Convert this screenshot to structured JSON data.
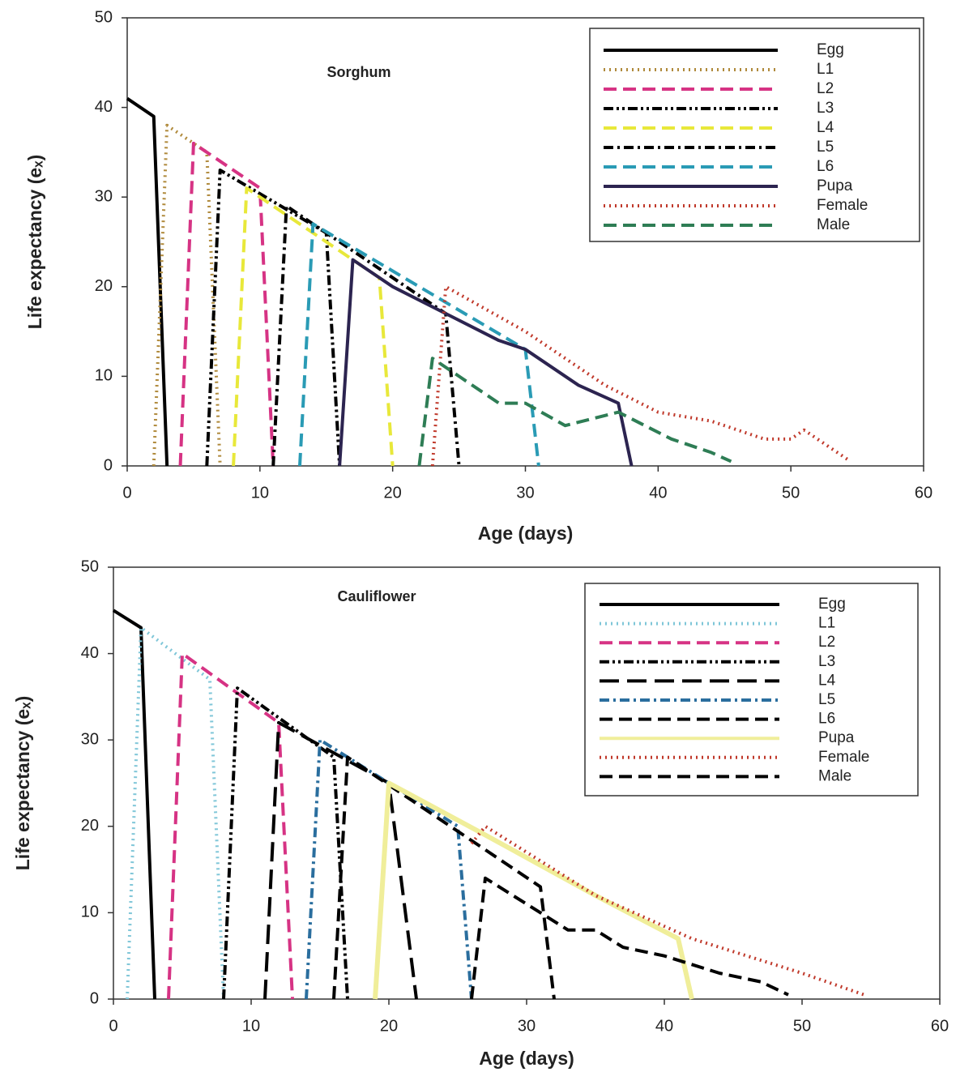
{
  "chart_data": [
    {
      "type": "line",
      "title": "Sorghum",
      "xlabel": "Age (days)",
      "ylabel": "Life expectancy (eₓ)",
      "xlim": [
        0,
        60
      ],
      "ylim": [
        0,
        50
      ],
      "xticks": [
        0,
        10,
        20,
        30,
        40,
        50,
        60
      ],
      "yticks": [
        0,
        10,
        20,
        30,
        40,
        50
      ],
      "series": [
        {
          "name": "Egg",
          "color": "#000000",
          "dash": "solid",
          "x": [
            0,
            2,
            3
          ],
          "values": [
            41,
            39,
            0
          ]
        },
        {
          "name": "L1",
          "color": "#b08a3c",
          "dash": "dotted",
          "x": [
            2,
            3,
            6,
            7
          ],
          "values": [
            0,
            38,
            35,
            0
          ]
        },
        {
          "name": "L2",
          "color": "#d63384",
          "dash": "dashed",
          "x": [
            4,
            5,
            10,
            11
          ],
          "values": [
            0,
            36,
            31,
            0
          ]
        },
        {
          "name": "L3",
          "color": "#000000",
          "dash": "dash-dot-dot",
          "x": [
            6,
            7,
            15,
            16
          ],
          "values": [
            0,
            33,
            26,
            0
          ]
        },
        {
          "name": "L4",
          "color": "#e8e83a",
          "dash": "dashed",
          "x": [
            8,
            9,
            19,
            20
          ],
          "values": [
            0,
            31,
            21,
            0
          ]
        },
        {
          "name": "L5",
          "color": "#000000",
          "dash": "dash-dot",
          "x": [
            11,
            12,
            24,
            25
          ],
          "values": [
            0,
            29,
            17,
            0
          ]
        },
        {
          "name": "L6",
          "color": "#2a9bb5",
          "dash": "dashed",
          "x": [
            13,
            14,
            30,
            31
          ],
          "values": [
            0,
            27,
            13,
            0
          ]
        },
        {
          "name": "Pupa",
          "color": "#2c2450",
          "dash": "solid",
          "x": [
            16,
            17,
            20,
            24,
            28,
            30,
            34,
            37,
            38
          ],
          "values": [
            0,
            23,
            20,
            17,
            14,
            13,
            9,
            7,
            0
          ]
        },
        {
          "name": "Female",
          "color": "#c0392b",
          "dash": "dotted",
          "x": [
            23,
            24,
            30,
            36,
            40,
            42,
            44,
            48,
            50,
            51,
            52,
            54.5
          ],
          "values": [
            0,
            20,
            15,
            9,
            6,
            5.5,
            5,
            3,
            3,
            4,
            3,
            0.5
          ]
        },
        {
          "name": "Male",
          "color": "#2e7d55",
          "dash": "dashed",
          "x": [
            22,
            23,
            25,
            28,
            30,
            33,
            37,
            41,
            44,
            45.5
          ],
          "values": [
            0,
            12,
            10,
            7,
            7,
            4.5,
            6,
            3,
            1.5,
            0.5
          ]
        }
      ]
    },
    {
      "type": "line",
      "title": "Cauliflower",
      "xlabel": "Age (days)",
      "ylabel": "Life expectancy (eₓ)",
      "xlim": [
        0,
        60
      ],
      "ylim": [
        0,
        50
      ],
      "xticks": [
        0,
        10,
        20,
        30,
        40,
        50,
        60
      ],
      "yticks": [
        0,
        10,
        20,
        30,
        40,
        50
      ],
      "series": [
        {
          "name": "Egg",
          "color": "#000000",
          "dash": "solid",
          "x": [
            0,
            2,
            3
          ],
          "values": [
            45,
            43,
            0
          ]
        },
        {
          "name": "L1",
          "color": "#7fc6d8",
          "dash": "dotted",
          "x": [
            1,
            2,
            7,
            8
          ],
          "values": [
            0,
            43,
            37,
            0
          ]
        },
        {
          "name": "L2",
          "color": "#d63384",
          "dash": "dashed",
          "x": [
            4,
            5,
            12,
            13
          ],
          "values": [
            0,
            40,
            32,
            0
          ]
        },
        {
          "name": "L3",
          "color": "#000000",
          "dash": "dash-dot-dot",
          "x": [
            8,
            9,
            16,
            17
          ],
          "values": [
            0,
            36,
            28,
            0
          ]
        },
        {
          "name": "L4",
          "color": "#000000",
          "dash": "long-dash",
          "x": [
            11,
            12,
            20,
            22
          ],
          "values": [
            0,
            32,
            25,
            0
          ]
        },
        {
          "name": "L5",
          "color": "#2a6e9e",
          "dash": "dash-dot",
          "x": [
            14,
            15,
            25,
            26
          ],
          "values": [
            0,
            30,
            20,
            0
          ]
        },
        {
          "name": "L6",
          "color": "#000000",
          "dash": "dashed",
          "x": [
            16,
            17,
            31,
            32
          ],
          "values": [
            0,
            28,
            13,
            0
          ]
        },
        {
          "name": "Pupa",
          "color": "#f0ee9a",
          "dash": "solid",
          "x": [
            19,
            20,
            27,
            35,
            41,
            42
          ],
          "values": [
            0,
            25,
            19,
            12,
            7,
            0
          ]
        },
        {
          "name": "Female",
          "color": "#c0392b",
          "dash": "dotted",
          "x": [
            26,
            27,
            35,
            42,
            46,
            47,
            50,
            54.5
          ],
          "values": [
            18,
            20,
            12,
            7,
            5,
            4.5,
            3,
            0.5
          ]
        },
        {
          "name": "Male",
          "color": "#000000",
          "dash": "dashed",
          "x": [
            26,
            27,
            30,
            33,
            35,
            37,
            40,
            44,
            47,
            49
          ],
          "values": [
            0,
            14,
            11,
            8,
            8,
            6,
            5,
            3,
            2,
            0.5
          ]
        }
      ]
    }
  ]
}
